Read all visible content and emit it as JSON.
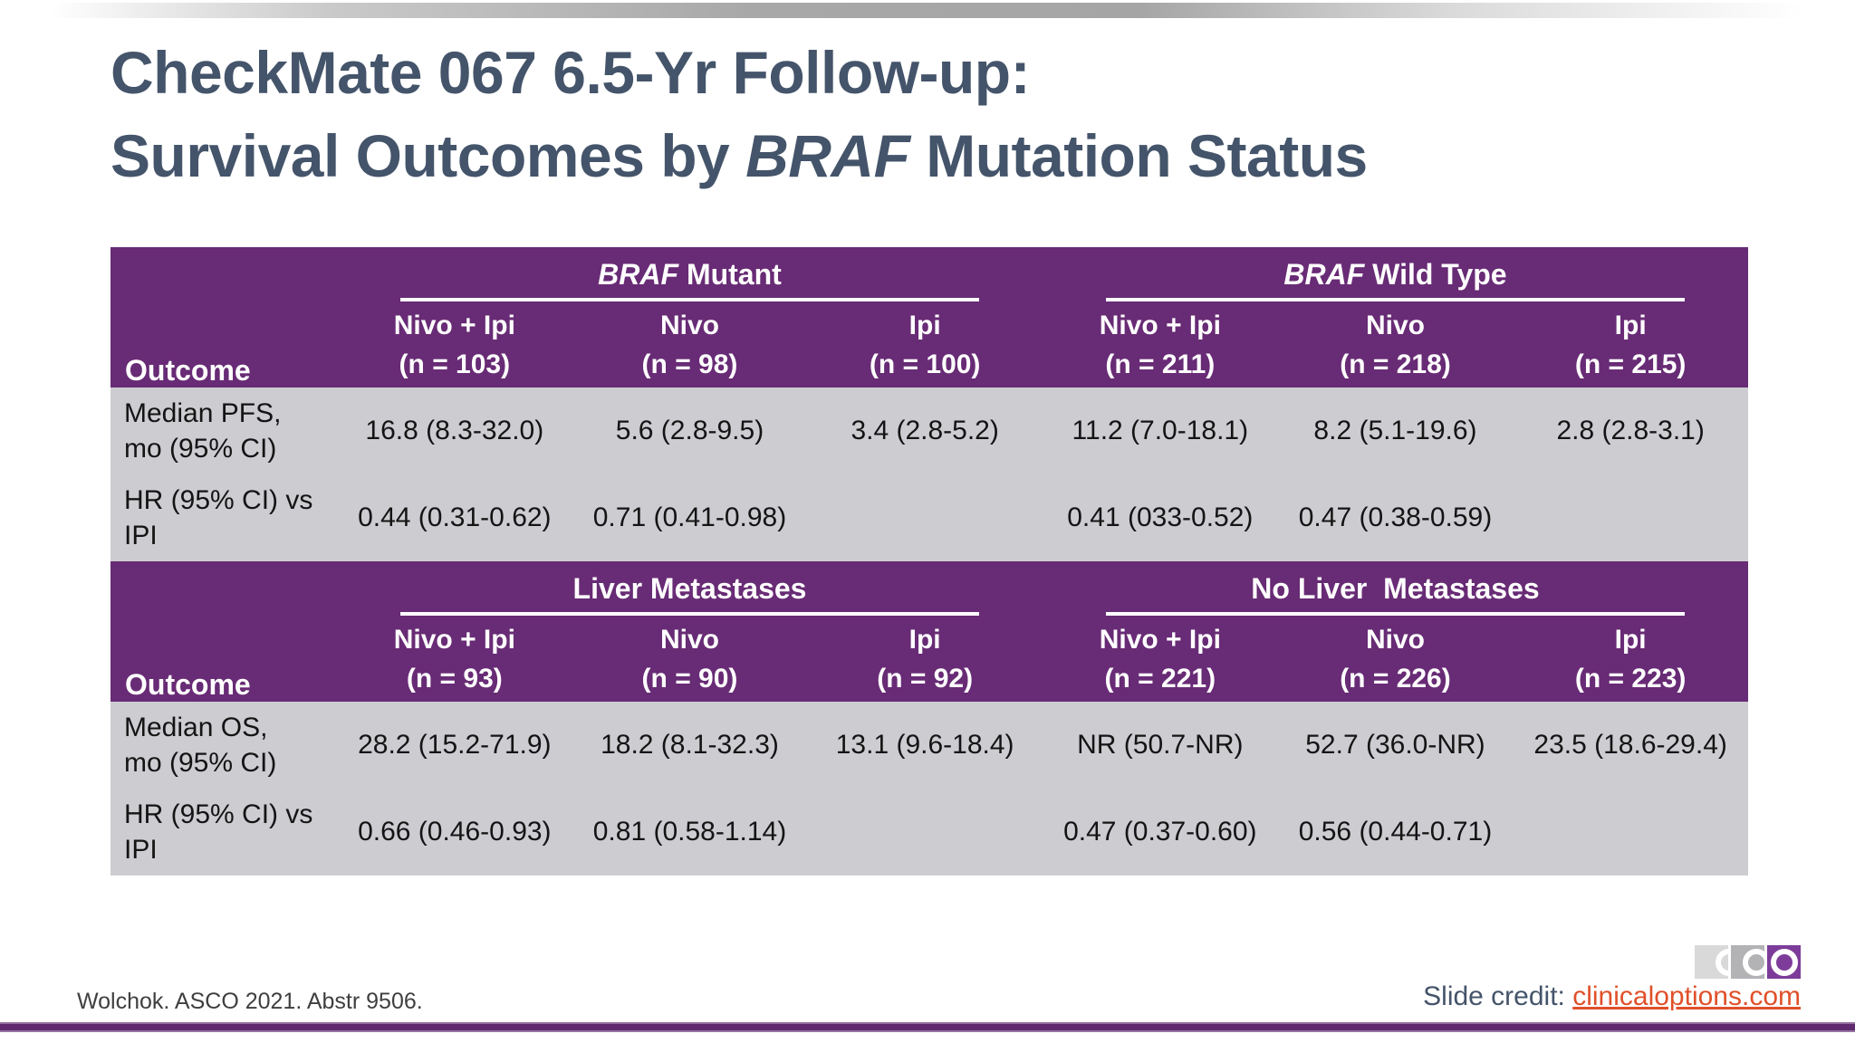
{
  "colors": {
    "header_purple": "#682B75",
    "row_gray": "#CDCCD1",
    "title_color": "#44546A",
    "link_orange": "#E0502A",
    "logo_purple": "#7D3C99",
    "bottom_bar_purple": "#5F2A6E"
  },
  "title": {
    "line1": "CheckMate 067 6.5-Yr Follow-up:",
    "line2_prefix": "Survival Outcomes by ",
    "line2_italic": "BRAF",
    "line2_suffix": " Mutation Status"
  },
  "tables": [
    {
      "outcome_label": "Outcome",
      "groups": [
        {
          "italic": "BRAF",
          "rest": " Mutant"
        },
        {
          "italic": "BRAF",
          "rest": " Wild Type"
        }
      ],
      "columns": [
        {
          "drug": "Nivo + Ipi",
          "n": "(n = 103)"
        },
        {
          "drug": "Nivo",
          "n": "(n = 98)"
        },
        {
          "drug": "Ipi",
          "n": "(n = 100)"
        },
        {
          "drug": "Nivo + Ipi",
          "n": "(n = 211)"
        },
        {
          "drug": "Nivo",
          "n": "(n = 218)"
        },
        {
          "drug": "Ipi",
          "n": "(n = 215)"
        }
      ],
      "rows": [
        {
          "label": "Median PFS,\nmo (95% CI)",
          "values": [
            "16.8 (8.3-32.0)",
            "5.6 (2.8-9.5)",
            "3.4 (2.8-5.2)",
            "11.2 (7.0-18.1)",
            "8.2 (5.1-19.6)",
            "2.8 (2.8-3.1)"
          ]
        },
        {
          "label": "HR (95% CI) vs\nIPI",
          "values": [
            "0.44 (0.31-0.62)",
            "0.71 (0.41-0.98)",
            "",
            "0.41 (033-0.52)",
            "0.47 (0.38-0.59)",
            ""
          ]
        }
      ]
    },
    {
      "outcome_label": "Outcome",
      "groups": [
        {
          "italic": "",
          "rest": "Liver Metastases"
        },
        {
          "italic": "",
          "rest": "No Liver  Metastases"
        }
      ],
      "columns": [
        {
          "drug": "Nivo + Ipi",
          "n": "(n = 93)"
        },
        {
          "drug": "Nivo",
          "n": "(n = 90)"
        },
        {
          "drug": "Ipi",
          "n": "(n = 92)"
        },
        {
          "drug": "Nivo + Ipi",
          "n": "(n = 221)"
        },
        {
          "drug": "Nivo",
          "n": "(n = 226)"
        },
        {
          "drug": "Ipi",
          "n": "(n = 223)"
        }
      ],
      "rows": [
        {
          "label": "Median OS,\nmo (95% CI)",
          "values": [
            "28.2 (15.2-71.9)",
            "18.2 (8.1-32.3)",
            "13.1 (9.6-18.4)",
            "NR (50.7-NR)",
            "52.7 (36.0-NR)",
            "23.5 (18.6-29.4)"
          ]
        },
        {
          "label": "HR (95% CI) vs\nIPI",
          "values": [
            "0.66 (0.46-0.93)",
            "0.81 (0.58-1.14)",
            "",
            "0.47 (0.37-0.60)",
            "0.56 (0.44-0.71)",
            ""
          ]
        }
      ]
    }
  ],
  "footer": {
    "reference": "Wolchok. ASCO 2021. Abstr 9506.",
    "credit_label": "Slide credit: ",
    "credit_link": "clinicaloptions.com"
  },
  "logo": {
    "letters": [
      "C",
      "C",
      "O"
    ]
  }
}
